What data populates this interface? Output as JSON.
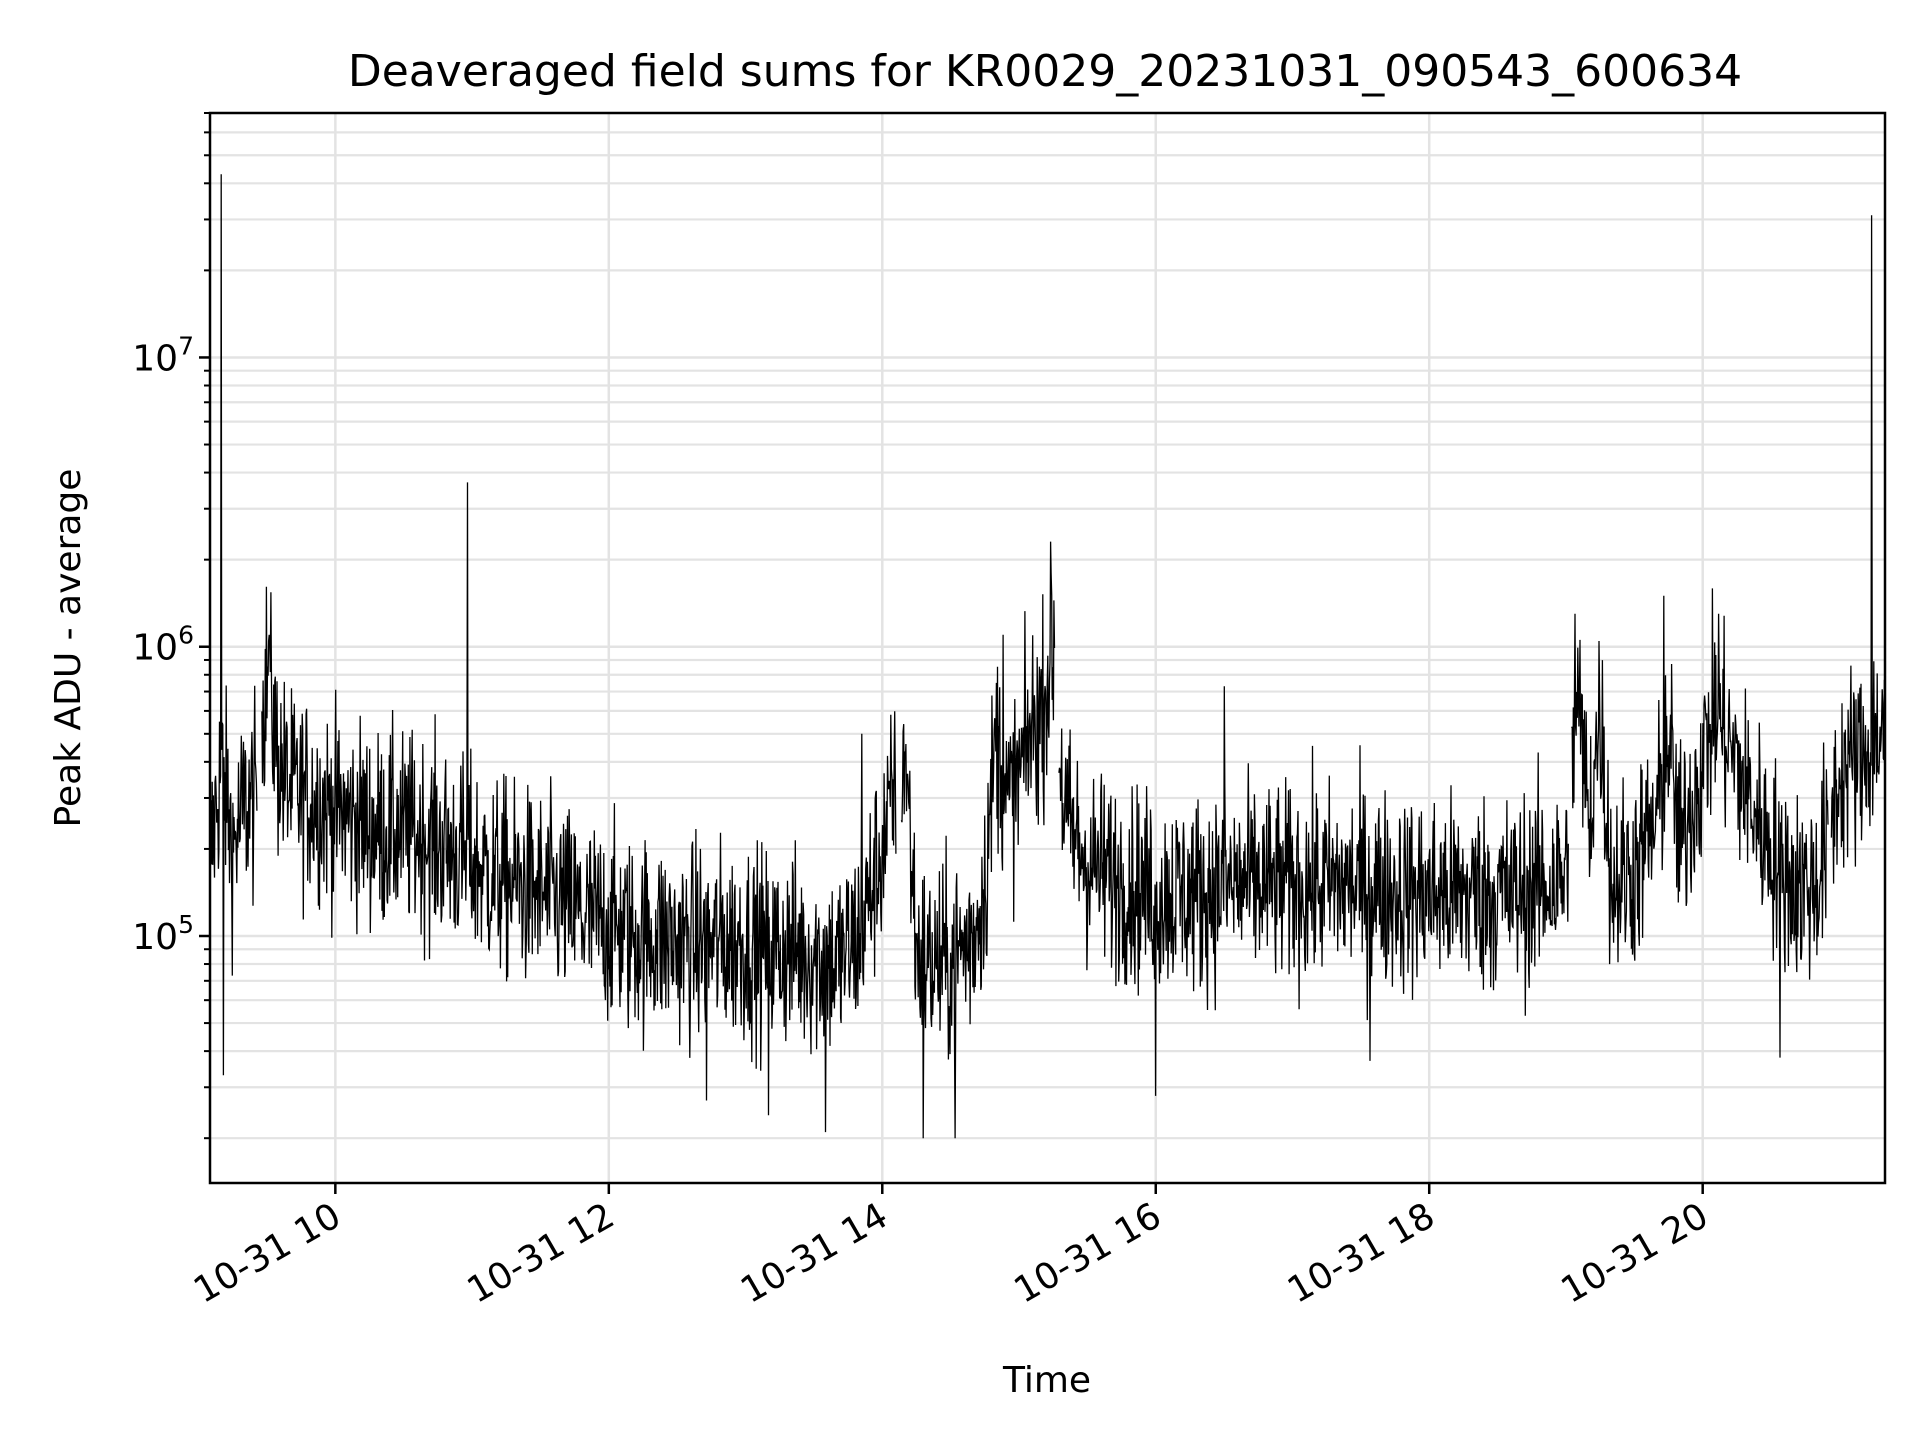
{
  "chart_data": {
    "type": "line",
    "title": "Deaveraged field sums for KR0029_20231031_090543_600634",
    "xlabel": "Time",
    "ylabel": "Peak ADU - average",
    "x_axis": {
      "kind": "datetime",
      "range": [
        "2023-10-31 09:05",
        "2023-10-31 21:20"
      ],
      "tick_values": [
        "2023-10-31 10:00",
        "2023-10-31 12:00",
        "2023-10-31 14:00",
        "2023-10-31 16:00",
        "2023-10-31 18:00",
        "2023-10-31 20:00"
      ],
      "tick_labels": [
        "10-31 10",
        "10-31 12",
        "10-31 14",
        "10-31 16",
        "10-31 18",
        "10-31 20"
      ],
      "tick_label_rotation_deg": 30
    },
    "y_axis": {
      "scale": "log",
      "ylim": [
        14000,
        70000000
      ],
      "major_ticks": [
        100000,
        1000000,
        10000000
      ],
      "major_tick_labels": [
        {
          "base": "10",
          "exp": "5"
        },
        {
          "base": "10",
          "exp": "6"
        },
        {
          "base": "10",
          "exp": "7"
        }
      ]
    },
    "grid": true,
    "legend": "none",
    "series": [
      {
        "color": "#000000",
        "points": [
          [
            "09:05",
            180000
          ],
          [
            "09:10",
            400000
          ],
          [
            "09:15",
            200000
          ],
          [
            "09:20",
            280000
          ],
          [
            "09:25",
            300000
          ],
          [
            "09:30",
            850000
          ],
          [
            "09:35",
            400000
          ],
          [
            "09:40",
            320000
          ],
          [
            "09:50",
            300000
          ],
          [
            "10:00",
            270000
          ],
          [
            "10:10",
            250000
          ],
          [
            "10:20",
            230000
          ],
          [
            "10:30",
            230000
          ],
          [
            "10:40",
            220000
          ],
          [
            "10:50",
            200000
          ],
          [
            "11:00",
            180000
          ],
          [
            "11:10",
            160000
          ],
          [
            "11:20",
            150000
          ],
          [
            "11:30",
            140000
          ],
          [
            "11:40",
            130000
          ],
          [
            "11:50",
            115000
          ],
          [
            "12:00",
            110000
          ],
          [
            "12:10",
            100000
          ],
          [
            "12:20",
            100000
          ],
          [
            "12:30",
            95000
          ],
          [
            "12:40",
            95000
          ],
          [
            "12:50",
            95000
          ],
          [
            "13:00",
            95000
          ],
          [
            "13:10",
            90000
          ],
          [
            "13:20",
            90000
          ],
          [
            "13:30",
            85000
          ],
          [
            "13:40",
            80000
          ],
          [
            "13:50",
            100000
          ],
          [
            "14:00",
            200000
          ],
          [
            "14:10",
            450000
          ],
          [
            "14:15",
            90000
          ],
          [
            "14:20",
            80000
          ],
          [
            "14:30",
            80000
          ],
          [
            "14:40",
            100000
          ],
          [
            "14:45",
            150000
          ],
          [
            "14:50",
            500000
          ],
          [
            "14:55",
            280000
          ],
          [
            "15:00",
            350000
          ],
          [
            "15:05",
            500000
          ],
          [
            "15:10",
            600000
          ],
          [
            "15:15",
            1000000
          ],
          [
            "15:20",
            250000
          ],
          [
            "15:30",
            180000
          ],
          [
            "15:40",
            160000
          ],
          [
            "15:50",
            150000
          ],
          [
            "16:00",
            140000
          ],
          [
            "16:10",
            140000
          ],
          [
            "16:20",
            140000
          ],
          [
            "16:30",
            150000
          ],
          [
            "16:40",
            150000
          ],
          [
            "16:50",
            150000
          ],
          [
            "17:00",
            150000
          ],
          [
            "17:10",
            150000
          ],
          [
            "17:20",
            150000
          ],
          [
            "17:30",
            150000
          ],
          [
            "17:40",
            145000
          ],
          [
            "17:50",
            140000
          ],
          [
            "18:00",
            140000
          ],
          [
            "18:10",
            140000
          ],
          [
            "18:20",
            140000
          ],
          [
            "18:30",
            140000
          ],
          [
            "18:40",
            140000
          ],
          [
            "18:50",
            150000
          ],
          [
            "19:00",
            160000
          ],
          [
            "19:05",
            700000
          ],
          [
            "19:10",
            250000
          ],
          [
            "19:15",
            600000
          ],
          [
            "19:20",
            150000
          ],
          [
            "19:30",
            170000
          ],
          [
            "19:40",
            250000
          ],
          [
            "19:45",
            500000
          ],
          [
            "19:50",
            200000
          ],
          [
            "20:00",
            400000
          ],
          [
            "20:05",
            600000
          ],
          [
            "20:10",
            500000
          ],
          [
            "20:20",
            300000
          ],
          [
            "20:30",
            200000
          ],
          [
            "20:40",
            150000
          ],
          [
            "20:50",
            150000
          ],
          [
            "21:00",
            350000
          ],
          [
            "21:05",
            400000
          ],
          [
            "21:10",
            400000
          ],
          [
            "21:15",
            500000
          ],
          [
            "21:20",
            500000
          ]
        ],
        "spikes": [
          [
            "09:10",
            43000000
          ],
          [
            "09:11",
            33000
          ],
          [
            "10:58",
            3700000
          ],
          [
            "21:14",
            31000000
          ],
          [
            "15:14",
            1800000
          ],
          [
            "19:43",
            1500000
          ],
          [
            "20:07",
            1300000
          ],
          [
            "19:04",
            1300000
          ],
          [
            "14:53",
            1100000
          ],
          [
            "09:31",
            1100000
          ],
          [
            "13:51",
            500000
          ],
          [
            "16:30",
            730000
          ],
          [
            "13:35",
            21000
          ],
          [
            "14:32",
            20000
          ],
          [
            "14:18",
            20000
          ],
          [
            "16:00",
            28000
          ],
          [
            "17:34",
            37000
          ],
          [
            "20:34",
            38000
          ],
          [
            "12:43",
            27000
          ],
          [
            "13:10",
            24000
          ]
        ]
      }
    ]
  }
}
